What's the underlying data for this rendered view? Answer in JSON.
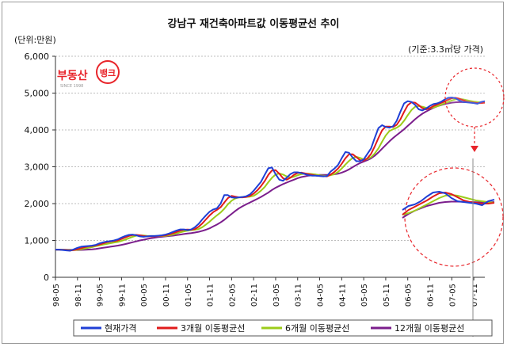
{
  "chart_data": {
    "type": "line",
    "title": "강남구 재건축아파트값 이동평균선 추이",
    "unit_label": "(단위:만원)",
    "basis_label": "(기준:3.3㎡당 가격)",
    "logo": {
      "text": "부동산",
      "badge": "뱅크",
      "sub": "SINCE 1998",
      "color": "#e8242a"
    },
    "ylim": [
      0,
      6000
    ],
    "yticks": [
      0,
      1000,
      2000,
      3000,
      4000,
      5000,
      6000
    ],
    "ytick_labels": [
      "0",
      "1,000",
      "2,000",
      "3,000",
      "4,000",
      "5,000",
      "6,000"
    ],
    "grid": true,
    "legend_position": "bottom",
    "x": [
      "98-05",
      "98-06",
      "98-07",
      "98-08",
      "98-09",
      "98-10",
      "98-11",
      "98-12",
      "99-01",
      "99-02",
      "99-03",
      "99-04",
      "99-05",
      "99-06",
      "99-07",
      "99-08",
      "99-09",
      "99-10",
      "99-11",
      "99-12",
      "00-01",
      "00-02",
      "00-03",
      "00-04",
      "00-05",
      "00-06",
      "00-07",
      "00-08",
      "00-09",
      "00-10",
      "00-11",
      "00-12",
      "01-01",
      "01-02",
      "01-03",
      "01-04",
      "01-05",
      "01-06",
      "01-07",
      "01-08",
      "01-09",
      "01-10",
      "01-11",
      "01-12",
      "02-01",
      "02-02",
      "02-03",
      "02-04",
      "02-05",
      "02-06",
      "02-07",
      "02-08",
      "02-09",
      "02-10",
      "02-11",
      "02-12",
      "03-01",
      "03-02",
      "03-03",
      "03-04",
      "03-05",
      "03-06",
      "03-07",
      "03-08",
      "03-09",
      "03-10",
      "03-11",
      "03-12",
      "04-01",
      "04-02",
      "04-03",
      "04-04",
      "04-05",
      "04-06",
      "04-07",
      "04-08",
      "04-09",
      "04-10",
      "04-11",
      "04-12",
      "05-01",
      "05-02",
      "05-03",
      "05-04",
      "05-05",
      "05-06",
      "05-07",
      "05-08",
      "05-09",
      "05-10",
      "05-11",
      "05-12",
      "06-01",
      "06-02",
      "06-03",
      "06-04",
      "06-05",
      "06-06",
      "06-07",
      "06-08",
      "06-09",
      "06-10",
      "06-11",
      "06-12",
      "07-01",
      "07-02",
      "07-03",
      "07-04",
      "07-05",
      "07-06",
      "07-07",
      "07-08",
      "07-09",
      "07-10",
      "07-11",
      "07-12",
      "08-01",
      "08-02"
    ],
    "xtick_labels": [
      "98-05",
      "98-11",
      "99-05",
      "99-11",
      "00-05",
      "00-11",
      "01-05",
      "01-11",
      "02-05",
      "02-11",
      "03-05",
      "03-11",
      "04-05",
      "04-11",
      "05-05",
      "05-11",
      "06-05",
      "06-11",
      "07-05",
      "07-11"
    ],
    "series": [
      {
        "name": "현재가격",
        "color": "#1f3fd6",
        "values": [
          750,
          750,
          740,
          730,
          720,
          760,
          800,
          830,
          840,
          850,
          860,
          880,
          920,
          950,
          970,
          980,
          1000,
          1030,
          1080,
          1120,
          1150,
          1160,
          1140,
          1110,
          1100,
          1110,
          1120,
          1120,
          1130,
          1140,
          1160,
          1190,
          1230,
          1270,
          1300,
          1300,
          1280,
          1300,
          1360,
          1450,
          1570,
          1680,
          1780,
          1840,
          1870,
          2000,
          2230,
          2230,
          2170,
          2160,
          2170,
          2180,
          2200,
          2250,
          2350,
          2470,
          2590,
          2780,
          2960,
          2980,
          2800,
          2650,
          2620,
          2700,
          2800,
          2850,
          2850,
          2830,
          2800,
          2770,
          2760,
          2760,
          2750,
          2740,
          2750,
          2870,
          2950,
          3050,
          3230,
          3400,
          3380,
          3250,
          3150,
          3150,
          3200,
          3350,
          3500,
          3780,
          4050,
          4130,
          4080,
          4060,
          4100,
          4250,
          4500,
          4720,
          4780,
          4760,
          4680,
          4560,
          4530,
          4580,
          4650,
          4700,
          4720,
          4760,
          4820,
          4870,
          4880,
          4860,
          4800,
          4760,
          4750,
          4740,
          4730,
          4710,
          4760,
          4780
        ]
      },
      {
        "name": "3개월 이동평균선",
        "color": "#e11b1b",
        "values": [
          750,
          750,
          745,
          740,
          725,
          740,
          760,
          790,
          820,
          840,
          850,
          865,
          890,
          920,
          950,
          970,
          985,
          1000,
          1040,
          1080,
          1120,
          1145,
          1150,
          1140,
          1120,
          1110,
          1110,
          1115,
          1120,
          1130,
          1140,
          1165,
          1195,
          1230,
          1265,
          1290,
          1295,
          1290,
          1310,
          1370,
          1460,
          1570,
          1680,
          1770,
          1830,
          1900,
          2030,
          2150,
          2210,
          2190,
          2170,
          2170,
          2180,
          2210,
          2270,
          2360,
          2470,
          2610,
          2780,
          2900,
          2910,
          2810,
          2690,
          2650,
          2700,
          2780,
          2830,
          2840,
          2820,
          2800,
          2780,
          2760,
          2750,
          2745,
          2740,
          2790,
          2860,
          2950,
          3080,
          3230,
          3340,
          3340,
          3260,
          3180,
          3170,
          3230,
          3350,
          3550,
          3780,
          3990,
          4090,
          4090,
          4080,
          4140,
          4290,
          4490,
          4670,
          4750,
          4740,
          4670,
          4590,
          4560,
          4590,
          4650,
          4690,
          4730,
          4770,
          4820,
          4860,
          4870,
          4850,
          4810,
          4770,
          4750,
          4740,
          4730,
          4730,
          4740
        ]
      },
      {
        "name": "6개월 이동평균선",
        "color": "#9ccc1a",
        "values": [
          750,
          750,
          748,
          745,
          738,
          735,
          745,
          760,
          780,
          800,
          820,
          845,
          865,
          885,
          905,
          925,
          945,
          960,
          990,
          1020,
          1060,
          1100,
          1130,
          1140,
          1135,
          1125,
          1120,
          1120,
          1120,
          1120,
          1125,
          1140,
          1160,
          1190,
          1220,
          1245,
          1265,
          1280,
          1290,
          1310,
          1360,
          1430,
          1510,
          1600,
          1680,
          1760,
          1860,
          1980,
          2080,
          2140,
          2170,
          2180,
          2180,
          2190,
          2210,
          2270,
          2350,
          2450,
          2580,
          2700,
          2790,
          2820,
          2790,
          2740,
          2710,
          2730,
          2770,
          2800,
          2810,
          2810,
          2800,
          2790,
          2770,
          2760,
          2750,
          2770,
          2800,
          2860,
          2950,
          3060,
          3160,
          3240,
          3270,
          3240,
          3200,
          3210,
          3260,
          3360,
          3500,
          3680,
          3850,
          3970,
          4020,
          4060,
          4130,
          4250,
          4400,
          4540,
          4630,
          4650,
          4630,
          4600,
          4590,
          4610,
          4640,
          4680,
          4720,
          4760,
          4800,
          4830,
          4840,
          4830,
          4810,
          4790,
          4770,
          4760,
          4750,
          4740
        ]
      },
      {
        "name": "12개월 이동평균선",
        "color": "#7b1e8c",
        "values": [
          750,
          750,
          750,
          749,
          746,
          742,
          740,
          742,
          746,
          752,
          760,
          770,
          785,
          800,
          815,
          830,
          845,
          860,
          880,
          900,
          925,
          950,
          975,
          1000,
          1020,
          1040,
          1060,
          1075,
          1090,
          1100,
          1110,
          1120,
          1130,
          1145,
          1160,
          1175,
          1190,
          1200,
          1215,
          1235,
          1260,
          1290,
          1330,
          1380,
          1430,
          1490,
          1560,
          1640,
          1720,
          1800,
          1870,
          1930,
          1980,
          2030,
          2080,
          2130,
          2180,
          2240,
          2300,
          2370,
          2430,
          2480,
          2530,
          2570,
          2610,
          2650,
          2690,
          2720,
          2740,
          2760,
          2770,
          2775,
          2780,
          2780,
          2780,
          2785,
          2795,
          2810,
          2840,
          2880,
          2930,
          2990,
          3050,
          3100,
          3140,
          3180,
          3230,
          3300,
          3390,
          3490,
          3590,
          3690,
          3780,
          3860,
          3940,
          4020,
          4110,
          4200,
          4290,
          4370,
          4440,
          4500,
          4550,
          4600,
          4640,
          4670,
          4700,
          4720,
          4740,
          4750,
          4755,
          4755,
          4752,
          4750,
          4748,
          4745,
          4745,
          4750
        ]
      }
    ]
  }
}
